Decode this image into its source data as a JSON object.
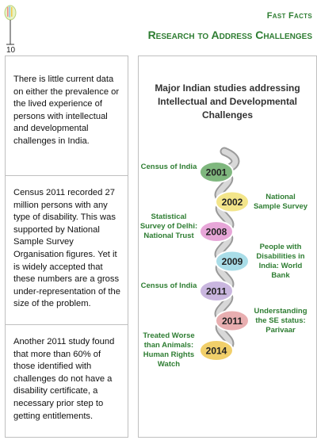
{
  "page_number": "10",
  "header": {
    "kicker": "Fast Facts",
    "title": "Research to Address Challenges"
  },
  "left_column": {
    "paragraphs": [
      "There is little current data on either the prevalence or the lived experience of persons with intellectual and developmental challenges in India.",
      "Census 2011 recorded 27 million persons with any type of disability. This was supported by National Sample Survey Organisation figures. Yet it is widely accepted that these numbers are a gross under-representation of the size of the problem.",
      "Another 2011 study found that more than 60% of those identified with challenges do not have a disability certificate, a necessary prior step to getting entitlements."
    ]
  },
  "timeline": {
    "title": "Major Indian studies addressing Intellectual and Developmental Challenges",
    "items": [
      {
        "year": "2001",
        "label": "Census of India",
        "side": "left",
        "color": "#7fb77e"
      },
      {
        "year": "2002",
        "label": "National Sample Survey",
        "side": "right",
        "color": "#f3e58a"
      },
      {
        "year": "2008",
        "label": "Statistical Survey of Delhi: National Trust",
        "side": "left",
        "color": "#e7a6d8"
      },
      {
        "year": "2009",
        "label": "People with Disabilities in India: World Bank",
        "side": "right",
        "color": "#a9dde8"
      },
      {
        "year": "2011",
        "label": "Census of India",
        "side": "left",
        "color": "#c9b6df"
      },
      {
        "year": "2011",
        "label": "Understanding the SE status: Parivaar",
        "side": "right",
        "color": "#e8aeb0"
      },
      {
        "year": "2014",
        "label": "Treated Worse than Animals: Human Rights Watch",
        "side": "left",
        "color": "#f1cf6a"
      }
    ]
  }
}
